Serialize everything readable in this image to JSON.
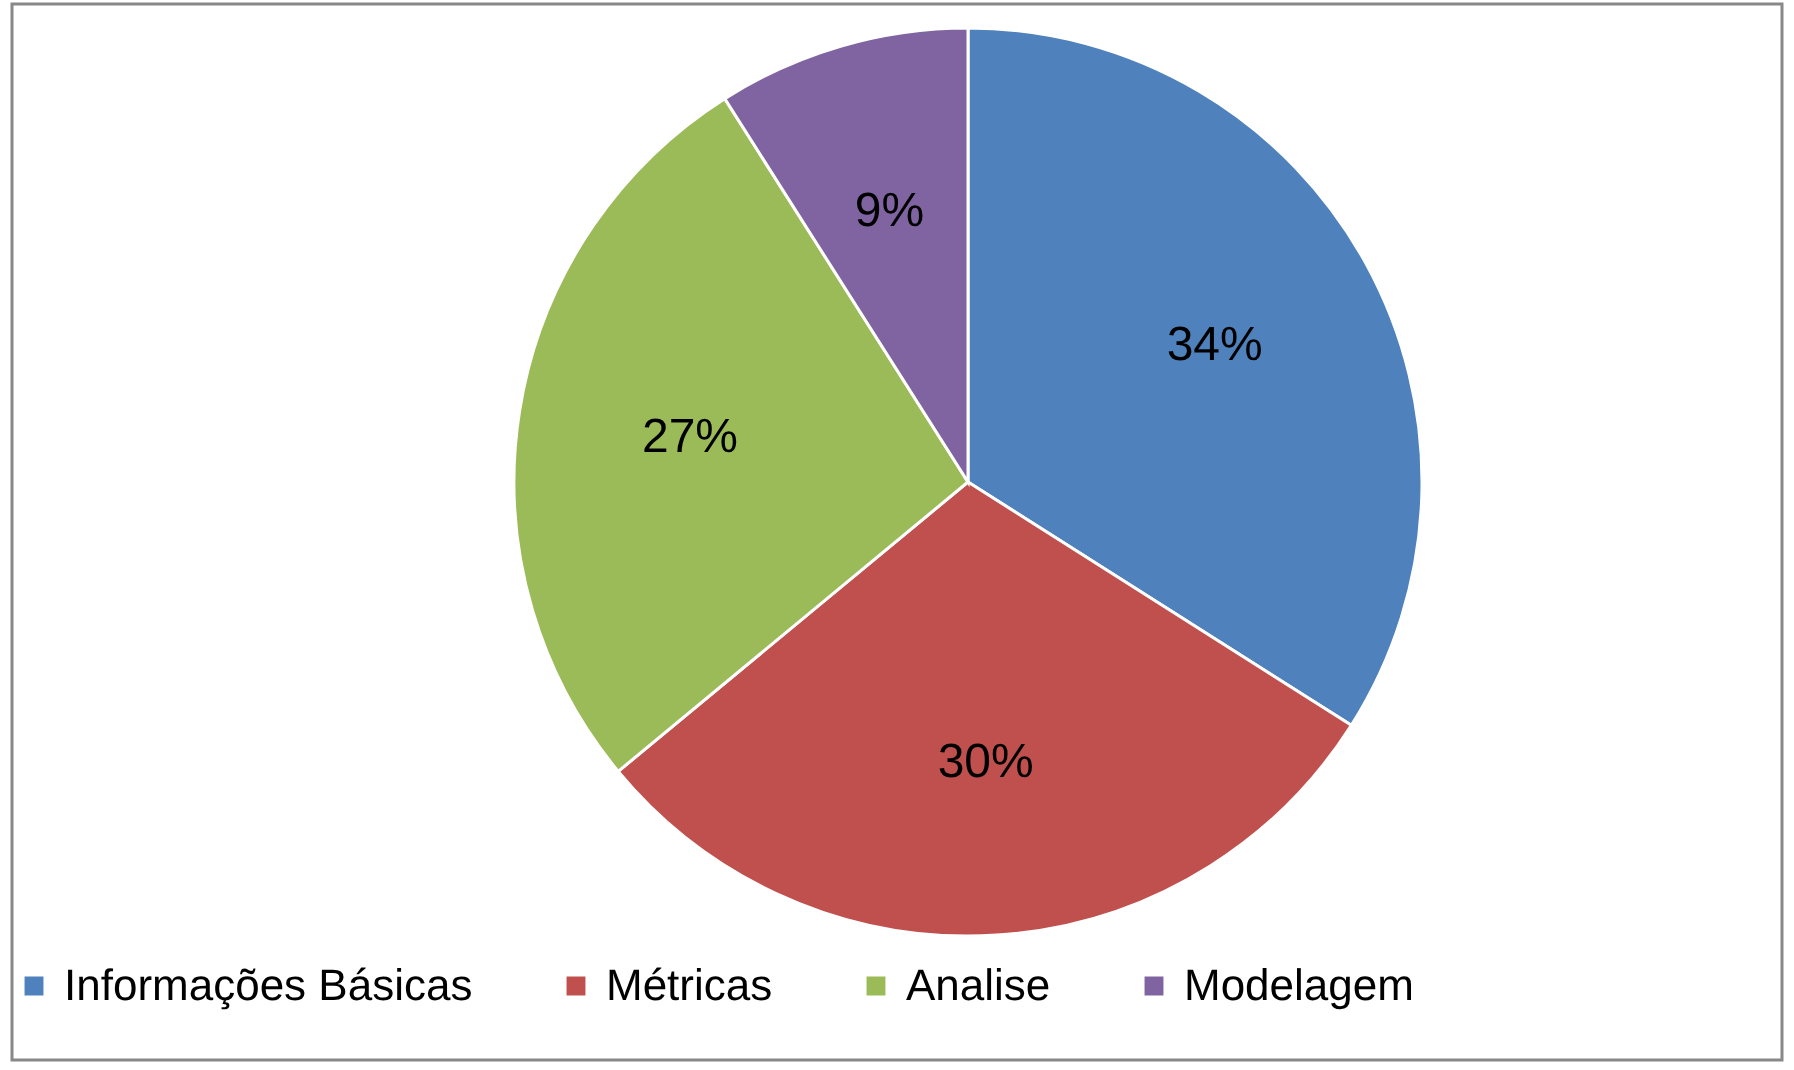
{
  "chart_data": {
    "type": "pie",
    "categories": [
      "Informações Básicas",
      "Métricas",
      "Analise",
      "Modelagem"
    ],
    "values": [
      34,
      30,
      27,
      9
    ],
    "colors": [
      "#4f81bd",
      "#c0504d",
      "#9bbb59",
      "#8064a2"
    ],
    "value_labels": [
      "34%",
      "30%",
      "27%",
      "9%"
    ],
    "legend": "bottom"
  }
}
